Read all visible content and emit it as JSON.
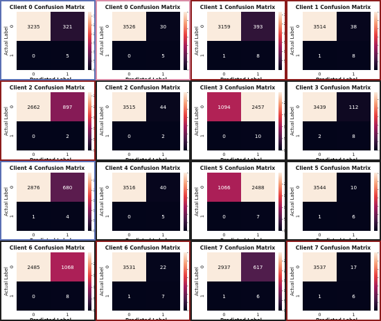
{
  "charts": {
    "common": {
      "xlabel": "Predicted Label",
      "ylabel": "Actual Label",
      "x_ticks": [
        "0",
        "1"
      ],
      "y_ticks": [
        "0",
        "1"
      ]
    },
    "panels": [
      {
        "title": "Client 0 Confusion Matrix",
        "border": "blue"
      },
      {
        "title": "Client 0 Confusion Matrix",
        "border": "pink"
      },
      {
        "title": "Client 1 Confusion Matrix",
        "border": "red"
      },
      {
        "title": "Client 1 Confusion Matrix",
        "border": "red"
      },
      {
        "title": "Client 2 Confusion Matrix",
        "border": "red"
      },
      {
        "title": "Client 2 Confusion Matrix",
        "border": "dark"
      },
      {
        "title": "Client 3 Confusion Matrix",
        "border": "dark"
      },
      {
        "title": "Client 3 Confusion Matrix",
        "border": "dark"
      },
      {
        "title": "Client 4 Confusion Matrix",
        "border": "blue"
      },
      {
        "title": "Client 4 Confusion Matrix",
        "border": "dark"
      },
      {
        "title": "Client 5 Confusion Matrix",
        "border": "dark"
      },
      {
        "title": "Client 5 Confusion Matrix",
        "border": "dark"
      },
      {
        "title": "Client 6 Confusion Matrix",
        "border": "dark"
      },
      {
        "title": "Client 6 Confusion Matrix",
        "border": "red"
      },
      {
        "title": "Client 7 Confusion Matrix",
        "border": "dark"
      },
      {
        "title": "Client 7 Confusion Matrix",
        "border": "red"
      }
    ]
  },
  "chart_data": [
    {
      "type": "heatmap",
      "title": "Client 0 Confusion Matrix",
      "xlabel": "Predicted Label",
      "ylabel": "Actual Label",
      "x": [
        "0",
        "1"
      ],
      "y": [
        "0",
        "1"
      ],
      "values": [
        [
          3235,
          321
        ],
        [
          0,
          5
        ]
      ],
      "colorbar_ticks": [
        0,
        500,
        1000,
        1500,
        2000,
        2500,
        3000
      ],
      "vmax": 3235
    },
    {
      "type": "heatmap",
      "title": "Client 0 Confusion Matrix",
      "xlabel": "Predicted Label",
      "ylabel": "Actual Label",
      "x": [
        "0",
        "1"
      ],
      "y": [
        "0",
        "1"
      ],
      "values": [
        [
          3526,
          30
        ],
        [
          0,
          5
        ]
      ],
      "colorbar_ticks": [
        0,
        500,
        1000,
        1500,
        2000,
        2500,
        3000,
        3500
      ],
      "vmax": 3526
    },
    {
      "type": "heatmap",
      "title": "Client 1 Confusion Matrix",
      "xlabel": "Predicted Label",
      "ylabel": "Actual Label",
      "x": [
        "0",
        "1"
      ],
      "y": [
        "0",
        "1"
      ],
      "values": [
        [
          3159,
          393
        ],
        [
          1,
          8
        ]
      ],
      "colorbar_ticks": [
        500,
        1000,
        1500,
        2000,
        2500,
        3000
      ],
      "vmax": 3159
    },
    {
      "type": "heatmap",
      "title": "Client 1 Confusion Matrix",
      "xlabel": "Predicted Label",
      "ylabel": "Actual Label",
      "x": [
        "0",
        "1"
      ],
      "y": [
        "0",
        "1"
      ],
      "values": [
        [
          3514,
          38
        ],
        [
          1,
          8
        ]
      ],
      "colorbar_ticks": [
        500,
        1000,
        1500,
        2000,
        2500,
        3000,
        3500
      ],
      "vmax": 3514
    },
    {
      "type": "heatmap",
      "title": "Client 2 Confusion Matrix",
      "xlabel": "Predicted Label",
      "ylabel": "Actual Label",
      "x": [
        "0",
        "1"
      ],
      "y": [
        "0",
        "1"
      ],
      "values": [
        [
          2662,
          897
        ],
        [
          0,
          2
        ]
      ],
      "colorbar_ticks": [
        0,
        500,
        1000,
        1500,
        2000,
        2500
      ],
      "vmax": 2662
    },
    {
      "type": "heatmap",
      "title": "Client 2 Confusion Matrix",
      "xlabel": "Predicted Label",
      "ylabel": "Actual Label",
      "x": [
        "0",
        "1"
      ],
      "y": [
        "0",
        "1"
      ],
      "values": [
        [
          3515,
          44
        ],
        [
          0,
          2
        ]
      ],
      "colorbar_ticks": [
        0,
        500,
        1000,
        1500,
        2000,
        2500,
        3000,
        3500
      ],
      "vmax": 3515
    },
    {
      "type": "heatmap",
      "title": "Client 3 Confusion Matrix",
      "xlabel": "Predicted Label",
      "ylabel": "Actual Label",
      "x": [
        "0",
        "1"
      ],
      "y": [
        "0",
        "1"
      ],
      "values": [
        [
          1094,
          2457
        ],
        [
          0,
          10
        ]
      ],
      "colorbar_ticks": [
        0,
        500,
        1000,
        1500,
        2000
      ],
      "vmax": 2457
    },
    {
      "type": "heatmap",
      "title": "Client 3 Confusion Matrix",
      "xlabel": "Predicted Label",
      "ylabel": "Actual Label",
      "x": [
        "0",
        "1"
      ],
      "y": [
        "0",
        "1"
      ],
      "values": [
        [
          3439,
          112
        ],
        [
          2,
          8
        ]
      ],
      "colorbar_ticks": [
        0,
        500,
        1000,
        1500,
        2000,
        2500,
        3000
      ],
      "vmax": 3439
    },
    {
      "type": "heatmap",
      "title": "Client 4 Confusion Matrix",
      "xlabel": "Predicted Label",
      "ylabel": "Actual Label",
      "x": [
        "0",
        "1"
      ],
      "y": [
        "0",
        "1"
      ],
      "values": [
        [
          2876,
          680
        ],
        [
          1,
          4
        ]
      ],
      "colorbar_ticks": [
        0,
        500,
        1000,
        1500,
        2000,
        2500
      ],
      "vmax": 2876
    },
    {
      "type": "heatmap",
      "title": "Client 4 Confusion Matrix",
      "xlabel": "Predicted Label",
      "ylabel": "Actual Label",
      "x": [
        "0",
        "1"
      ],
      "y": [
        "0",
        "1"
      ],
      "values": [
        [
          3516,
          40
        ],
        [
          0,
          5
        ]
      ],
      "colorbar_ticks": [
        0,
        500,
        1000,
        1500,
        2000,
        2500,
        3000,
        3500
      ],
      "vmax": 3516
    },
    {
      "type": "heatmap",
      "title": "Client 5 Confusion Matrix",
      "xlabel": "Predicted Label",
      "ylabel": "Actual Label",
      "x": [
        "0",
        "1"
      ],
      "y": [
        "0",
        "1"
      ],
      "values": [
        [
          1066,
          2488
        ],
        [
          0,
          7
        ]
      ],
      "colorbar_ticks": [
        0,
        500,
        1000,
        1500,
        2000
      ],
      "vmax": 2488
    },
    {
      "type": "heatmap",
      "title": "Client 5 Confusion Matrix",
      "xlabel": "Predicted Label",
      "ylabel": "Actual Label",
      "x": [
        "0",
        "1"
      ],
      "y": [
        "0",
        "1"
      ],
      "values": [
        [
          3544,
          10
        ],
        [
          1,
          6
        ]
      ],
      "colorbar_ticks": [
        500,
        1000,
        1500,
        2000,
        2500,
        3000,
        3500
      ],
      "vmax": 3544
    },
    {
      "type": "heatmap",
      "title": "Client 6 Confusion Matrix",
      "xlabel": "Predicted Label",
      "ylabel": "Actual Label",
      "x": [
        "0",
        "1"
      ],
      "y": [
        "0",
        "1"
      ],
      "values": [
        [
          2485,
          1068
        ],
        [
          0,
          8
        ]
      ],
      "colorbar_ticks": [
        0,
        500,
        1000,
        1500,
        2000
      ],
      "vmax": 2485
    },
    {
      "type": "heatmap",
      "title": "Client 6 Confusion Matrix",
      "xlabel": "Predicted Label",
      "ylabel": "Actual Label",
      "x": [
        "0",
        "1"
      ],
      "y": [
        "0",
        "1"
      ],
      "values": [
        [
          3531,
          22
        ],
        [
          1,
          7
        ]
      ],
      "colorbar_ticks": [
        0,
        500,
        1000,
        1500,
        2000,
        2500,
        3000,
        3500
      ],
      "vmax": 3531
    },
    {
      "type": "heatmap",
      "title": "Client 7 Confusion Matrix",
      "xlabel": "Predicted Label",
      "ylabel": "Actual Label",
      "x": [
        "0",
        "1"
      ],
      "y": [
        "0",
        "1"
      ],
      "values": [
        [
          2937,
          617
        ],
        [
          1,
          6
        ]
      ],
      "colorbar_ticks": [
        0,
        500,
        1000,
        1500,
        2000,
        2500
      ],
      "vmax": 2937
    },
    {
      "type": "heatmap",
      "title": "Client 7 Confusion Matrix",
      "xlabel": "Predicted Label",
      "ylabel": "Actual Label",
      "x": [
        "0",
        "1"
      ],
      "y": [
        "0",
        "1"
      ],
      "values": [
        [
          3537,
          17
        ],
        [
          1,
          6
        ]
      ],
      "colorbar_ticks": [
        500,
        1000,
        1500,
        2000,
        2500,
        3000,
        3500
      ],
      "vmax": 3537
    }
  ],
  "colors": {
    "cmap_low": "#03051a",
    "cmap_mid1": "#4c1d4b",
    "cmap_mid2": "#a11a5b",
    "cmap_mid3": "#e83f3f",
    "cmap_mid4": "#f69c73",
    "cmap_high": "#faebdd",
    "text_dark": "#111111",
    "text_light": "#ffffff"
  }
}
